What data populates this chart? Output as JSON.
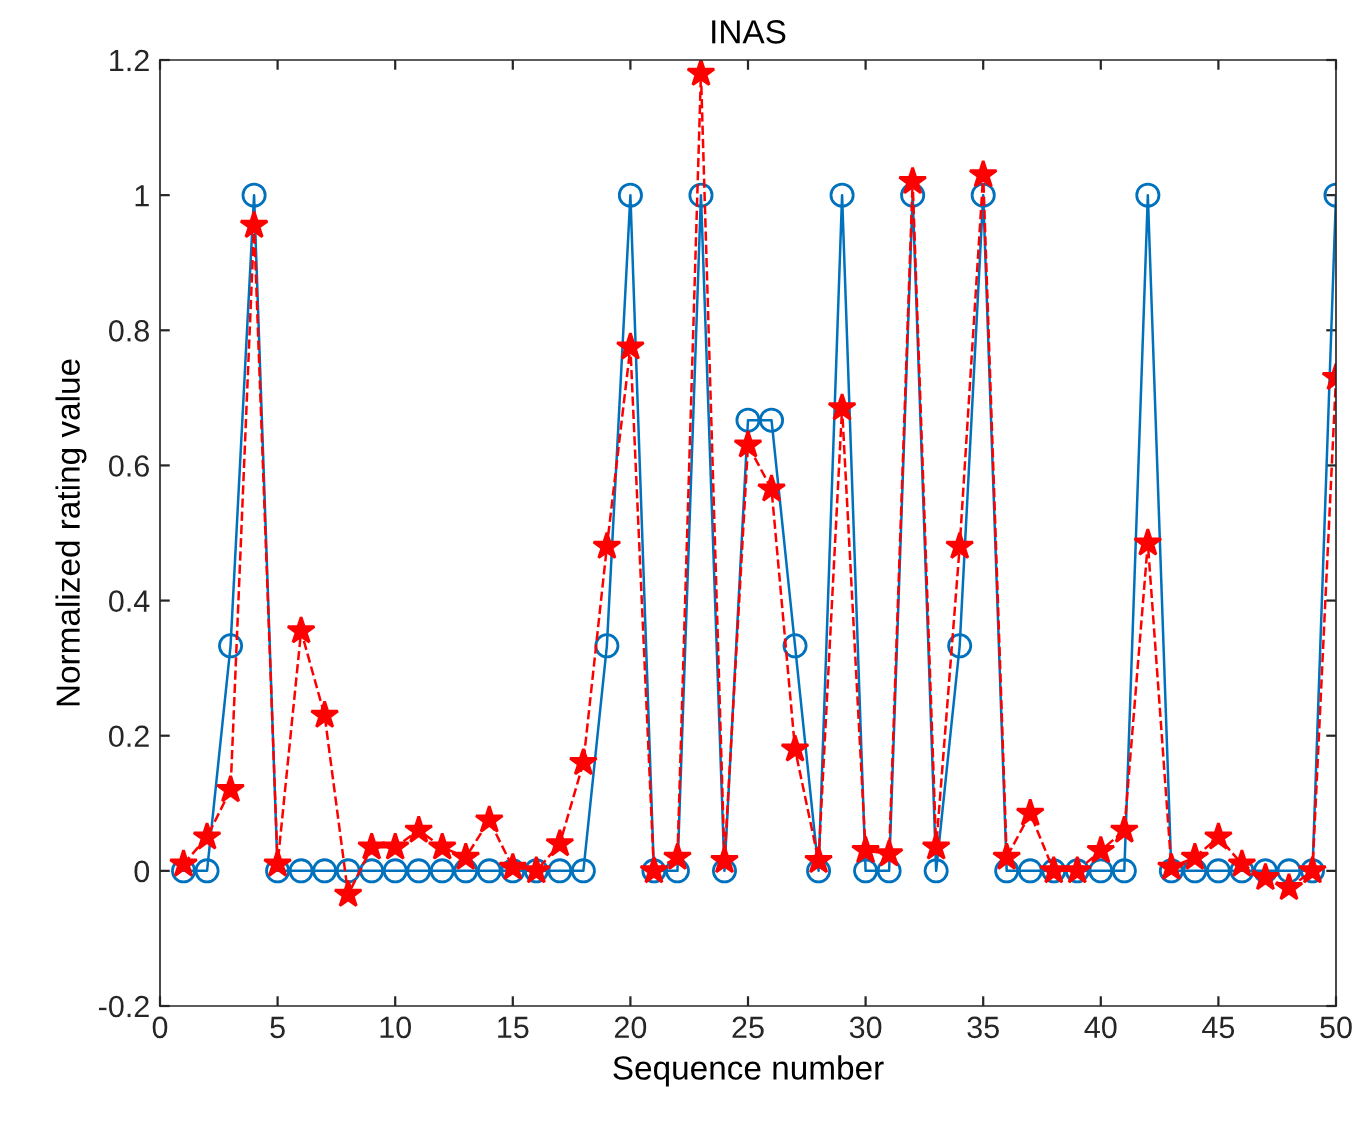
{
  "chart_data": {
    "type": "line",
    "title": "INAS",
    "xlabel": "Sequence number",
    "ylabel": "Normalized rating value",
    "x": [
      1,
      2,
      3,
      4,
      5,
      6,
      7,
      8,
      9,
      10,
      11,
      12,
      13,
      14,
      15,
      16,
      17,
      18,
      19,
      20,
      21,
      22,
      23,
      24,
      25,
      26,
      27,
      28,
      29,
      30,
      31,
      32,
      33,
      34,
      35,
      36,
      37,
      38,
      39,
      40,
      41,
      42,
      43,
      44,
      45,
      46,
      47,
      48,
      49,
      50
    ],
    "series": [
      {
        "color": "#0072bd",
        "marker": "circle",
        "line_style": "solid",
        "values": [
          0,
          0,
          0.333,
          1,
          0,
          0,
          0,
          0,
          0,
          0,
          0,
          0,
          0,
          0,
          0,
          0,
          0,
          0,
          0.333,
          1,
          0,
          0,
          1,
          0,
          0.667,
          0.667,
          0.333,
          0,
          1,
          0,
          0,
          1,
          0,
          0.333,
          1,
          0,
          0,
          0,
          0,
          0,
          0,
          1,
          0,
          0,
          0,
          0,
          0,
          0,
          0,
          1
        ]
      },
      {
        "color": "#ff0000",
        "marker": "star",
        "line_style": "dashed",
        "values": [
          0.01,
          0.05,
          0.12,
          0.955,
          0.01,
          0.355,
          0.23,
          -0.035,
          0.035,
          0.035,
          0.06,
          0.035,
          0.02,
          0.075,
          0.005,
          0,
          0.04,
          0.16,
          0.48,
          0.775,
          0,
          0.02,
          1.18,
          0.015,
          0.63,
          0.565,
          0.18,
          0.015,
          0.685,
          0.03,
          0.025,
          1.02,
          0.035,
          0.48,
          1.03,
          0.02,
          0.085,
          0,
          0,
          0.03,
          0.06,
          0.485,
          0.005,
          0.02,
          0.05,
          0.01,
          -0.01,
          -0.025,
          0,
          0.73
        ]
      }
    ],
    "xlim": [
      0,
      50
    ],
    "xticks": [
      0,
      5,
      10,
      15,
      20,
      25,
      30,
      35,
      40,
      45,
      50
    ],
    "ylim": [
      -0.2,
      1.2
    ],
    "yticks": [
      -0.2,
      0,
      0.2,
      0.4,
      0.6,
      0.8,
      1,
      1.2
    ],
    "grid": false,
    "legend": false
  }
}
